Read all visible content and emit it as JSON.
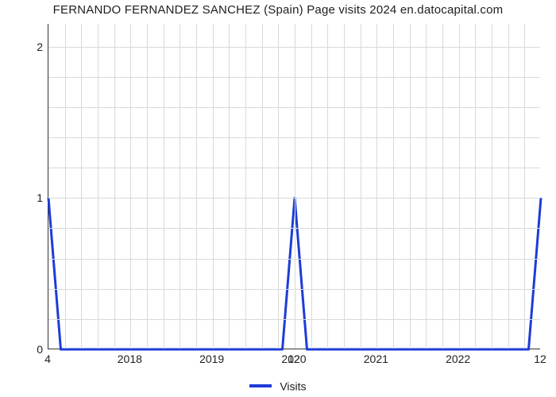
{
  "chart": {
    "type": "line",
    "title": "FERNANDO FERNANDEZ SANCHEZ (Spain) Page visits 2024 en.datocapital.com",
    "title_fontsize": 15,
    "background_color": "#ffffff",
    "grid_color": "#d9d9d9",
    "axis_color": "#333333",
    "line_color": "#1d3cd6",
    "line_width": 3,
    "xlim": [
      0,
      6
    ],
    "ylim": [
      0,
      2.15
    ],
    "x_ticks": [
      {
        "pos": 1,
        "label": "2018"
      },
      {
        "pos": 2,
        "label": "2019"
      },
      {
        "pos": 3,
        "label": "2020"
      },
      {
        "pos": 4,
        "label": "2021"
      },
      {
        "pos": 5,
        "label": "2022"
      }
    ],
    "y_ticks": [
      {
        "pos": 0,
        "label": "0"
      },
      {
        "pos": 1,
        "label": "1"
      },
      {
        "pos": 2,
        "label": "2"
      }
    ],
    "y_minor_ticks": [
      0.2,
      0.4,
      0.6,
      0.8,
      1.2,
      1.4,
      1.6,
      1.8
    ],
    "x_minor_ticks": [
      0.2,
      0.4,
      0.6,
      0.8,
      1.2,
      1.4,
      1.6,
      1.8,
      2.2,
      2.4,
      2.6,
      2.8,
      3.2,
      3.4,
      3.6,
      3.8,
      4.2,
      4.4,
      4.6,
      4.8,
      5.2,
      5.4,
      5.6,
      5.8
    ],
    "series": {
      "name": "Visits",
      "points": [
        {
          "x": 0.0,
          "y": 1.0,
          "label": "4"
        },
        {
          "x": 0.15,
          "y": 0.0
        },
        {
          "x": 2.85,
          "y": 0.0
        },
        {
          "x": 3.0,
          "y": 1.0,
          "label": "12"
        },
        {
          "x": 3.15,
          "y": 0.0
        },
        {
          "x": 5.85,
          "y": 0.0
        },
        {
          "x": 6.0,
          "y": 1.0,
          "label": "12"
        }
      ]
    },
    "legend": {
      "label": "Visits",
      "swatch_color": "#1d3cd6"
    }
  }
}
